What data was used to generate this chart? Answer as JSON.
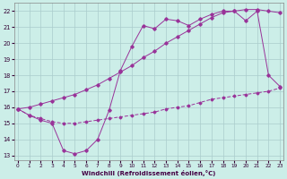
{
  "xlabel": "Windchill (Refroidissement éolien,°C)",
  "bg_color": "#cceee8",
  "grid_color": "#aacccc",
  "line_color": "#993399",
  "x_ticks": [
    0,
    1,
    2,
    3,
    4,
    5,
    6,
    7,
    8,
    9,
    10,
    11,
    12,
    13,
    14,
    15,
    16,
    17,
    18,
    19,
    20,
    21,
    22,
    23
  ],
  "y_ticks": [
    13,
    14,
    15,
    16,
    17,
    18,
    19,
    20,
    21,
    22
  ],
  "xlim": [
    -0.3,
    23.3
  ],
  "ylim": [
    12.7,
    22.5
  ],
  "curve1_x": [
    0,
    1,
    2,
    3,
    4,
    5,
    6,
    7,
    8,
    9,
    10,
    11,
    12,
    13,
    14,
    15,
    16,
    17,
    18,
    19,
    20,
    21,
    22,
    23
  ],
  "curve1_y": [
    15.9,
    16.0,
    16.2,
    16.4,
    16.6,
    16.8,
    17.1,
    17.4,
    17.8,
    18.2,
    18.6,
    19.1,
    19.5,
    20.0,
    20.4,
    20.8,
    21.2,
    21.6,
    21.9,
    22.0,
    22.1,
    22.1,
    22.0,
    21.9
  ],
  "curve2_x": [
    0,
    1,
    2,
    3,
    4,
    5,
    6,
    7,
    8,
    9,
    10,
    11,
    12,
    13,
    14,
    15,
    16,
    17,
    18,
    19,
    20,
    21,
    22,
    23
  ],
  "curve2_y": [
    15.9,
    15.5,
    15.2,
    15.0,
    13.3,
    13.1,
    13.3,
    14.0,
    15.8,
    18.3,
    19.8,
    21.1,
    20.9,
    21.5,
    21.4,
    21.1,
    21.5,
    21.8,
    22.0,
    22.0,
    21.4,
    22.0,
    18.0,
    17.3
  ],
  "curve3_x": [
    0,
    1,
    2,
    3,
    4,
    5,
    6,
    7,
    8,
    9,
    10,
    11,
    12,
    13,
    14,
    15,
    16,
    17,
    18,
    19,
    20,
    21,
    22,
    23
  ],
  "curve3_y": [
    15.9,
    15.5,
    15.3,
    15.1,
    15.0,
    15.0,
    15.1,
    15.2,
    15.3,
    15.4,
    15.5,
    15.6,
    15.7,
    15.9,
    16.0,
    16.1,
    16.3,
    16.5,
    16.6,
    16.7,
    16.8,
    16.9,
    17.0,
    17.2
  ]
}
